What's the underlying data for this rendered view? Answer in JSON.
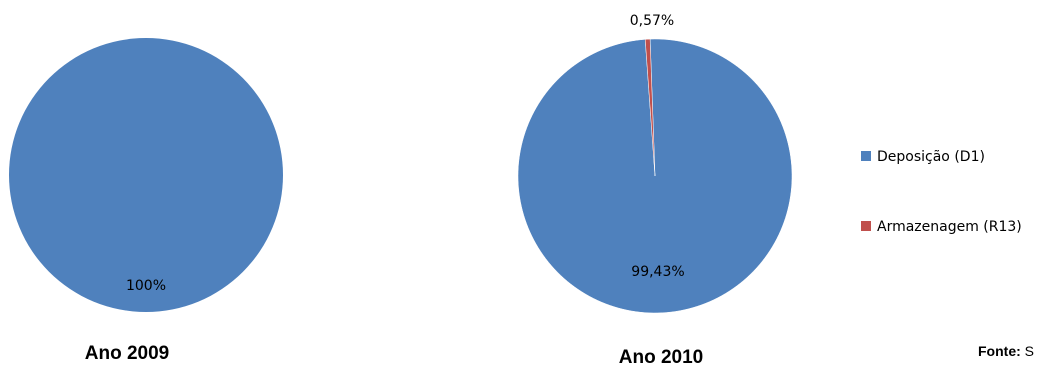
{
  "chart_data": [
    {
      "type": "pie",
      "title": "Ano 2009",
      "categories": [
        "Deposição (D1)",
        "Armazenagem (R13)"
      ],
      "values": [
        100,
        0
      ],
      "data_labels": [
        "100%",
        ""
      ]
    },
    {
      "type": "pie",
      "title": "Ano 2010",
      "categories": [
        "Deposição (D1)",
        "Armazenagem (R13)"
      ],
      "values": [
        99.43,
        0.57
      ],
      "data_labels": [
        "99,43%",
        "0,57%"
      ]
    }
  ],
  "legend": {
    "placement": "right",
    "items": [
      {
        "label": "Deposição (D1)",
        "color": "#4f81bd"
      },
      {
        "label": "Armazenagem (R13)",
        "color": "#c0504d"
      }
    ]
  },
  "source": {
    "label": "Fonte:",
    "text": "S"
  }
}
